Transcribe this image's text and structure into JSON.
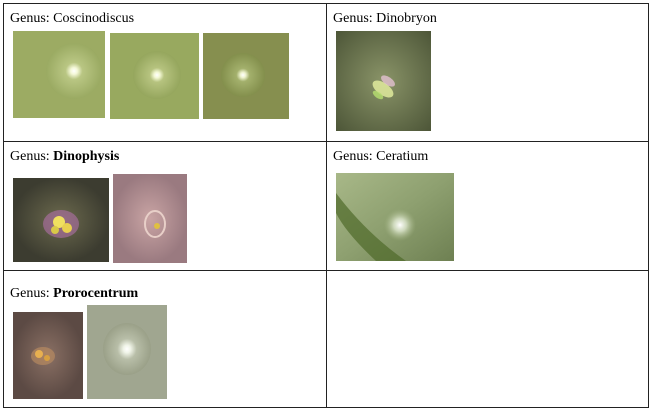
{
  "prefix": "Genus: ",
  "cells": [
    {
      "genus": "Coscinodiscus",
      "bold": false,
      "image_count": 3
    },
    {
      "genus": "Dinobryon",
      "bold": false,
      "image_count": 1
    },
    {
      "genus": "Dinophysis",
      "bold": true,
      "image_count": 2
    },
    {
      "genus": "Ceratium",
      "bold": false,
      "image_count": 1
    },
    {
      "genus": "Prorocentrum",
      "bold": true,
      "image_count": 2
    }
  ]
}
